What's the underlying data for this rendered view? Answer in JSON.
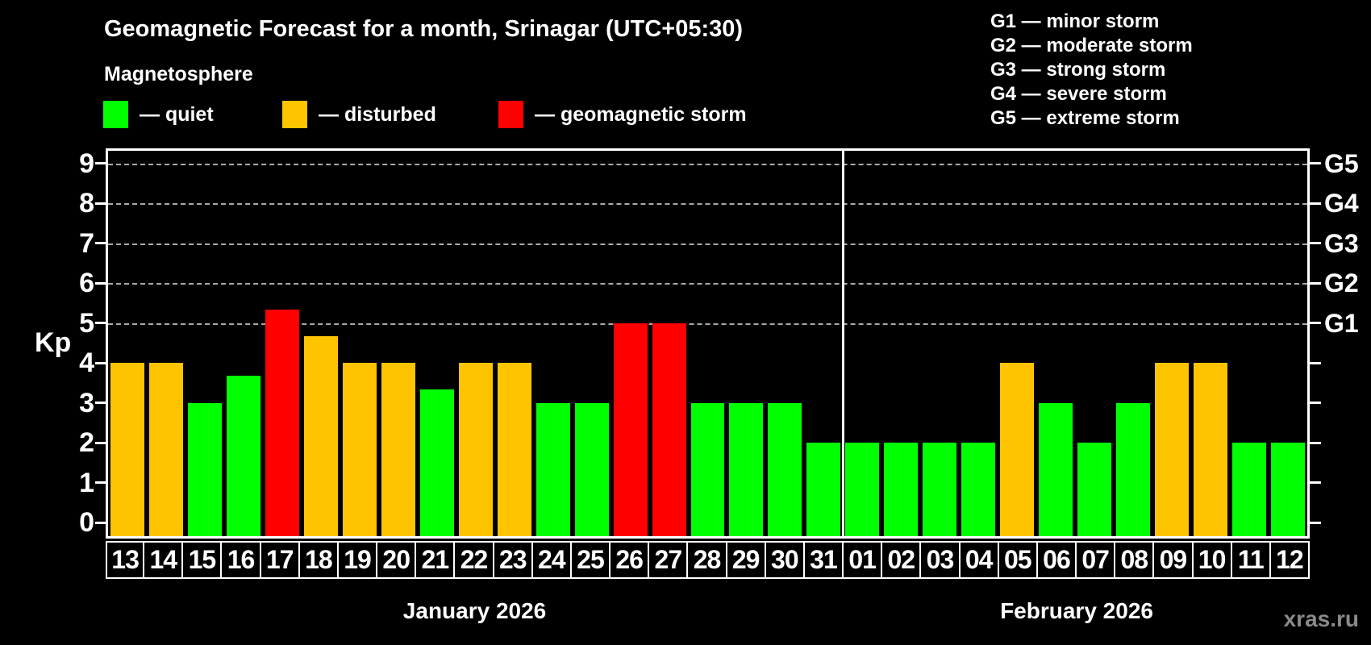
{
  "header": {
    "title": "Geomagnetic Forecast for a month, Srinagar (UTC+05:30)",
    "subtitle": "Magnetosphere"
  },
  "legend": {
    "items": [
      {
        "status": "quiet",
        "label": "— quiet",
        "color": "#00ff00"
      },
      {
        "status": "disturbed",
        "label": "— disturbed",
        "color": "#ffc400"
      },
      {
        "status": "storm",
        "label": "— geomagnetic storm",
        "color": "#ff0000"
      }
    ]
  },
  "g_legend": {
    "items": [
      "G1 — minor storm",
      "G2 — moderate storm",
      "G3 — strong storm",
      "G4 — severe storm",
      "G5 — extreme storm"
    ]
  },
  "chart_data": {
    "type": "bar",
    "title": "Geomagnetic Forecast for a month, Srinagar (UTC+05:30)",
    "xlabel": "",
    "ylabel": "Kp",
    "ylim": [
      0,
      9
    ],
    "yticks": [
      0,
      1,
      2,
      3,
      4,
      5,
      6,
      7,
      8,
      9
    ],
    "gridlines_at_kp": [
      5,
      6,
      7,
      8,
      9
    ],
    "grid": "dashed horizontal at G-storm levels only",
    "right_axis": [
      {
        "label": "G1",
        "kp": 5
      },
      {
        "label": "G2",
        "kp": 6
      },
      {
        "label": "G3",
        "kp": 7
      },
      {
        "label": "G4",
        "kp": 8
      },
      {
        "label": "G5",
        "kp": 9
      }
    ],
    "months": [
      {
        "label": "January 2026",
        "days": 19
      },
      {
        "label": "February 2026",
        "days": 12
      }
    ],
    "categories": [
      "13",
      "14",
      "15",
      "16",
      "17",
      "18",
      "19",
      "20",
      "21",
      "22",
      "23",
      "24",
      "25",
      "26",
      "27",
      "28",
      "29",
      "30",
      "31",
      "01",
      "02",
      "03",
      "04",
      "05",
      "06",
      "07",
      "08",
      "09",
      "10",
      "11",
      "12"
    ],
    "values": [
      4,
      4,
      3,
      3.67,
      5.33,
      4.67,
      4,
      4,
      3.33,
      4,
      4,
      3,
      3,
      5,
      5,
      3,
      3,
      3,
      2,
      2,
      2,
      2,
      2,
      4,
      3,
      2,
      3,
      4,
      4,
      2,
      2
    ],
    "statuses": [
      "disturbed",
      "disturbed",
      "quiet",
      "quiet",
      "storm",
      "disturbed",
      "disturbed",
      "disturbed",
      "quiet",
      "disturbed",
      "disturbed",
      "quiet",
      "quiet",
      "storm",
      "storm",
      "quiet",
      "quiet",
      "quiet",
      "quiet",
      "quiet",
      "quiet",
      "quiet",
      "quiet",
      "disturbed",
      "quiet",
      "quiet",
      "quiet",
      "disturbed",
      "disturbed",
      "quiet",
      "quiet"
    ],
    "status_colors": {
      "quiet": "#00ff00",
      "disturbed": "#ffc400",
      "storm": "#ff0000"
    }
  },
  "footer": {
    "watermark": "xras.ru"
  }
}
